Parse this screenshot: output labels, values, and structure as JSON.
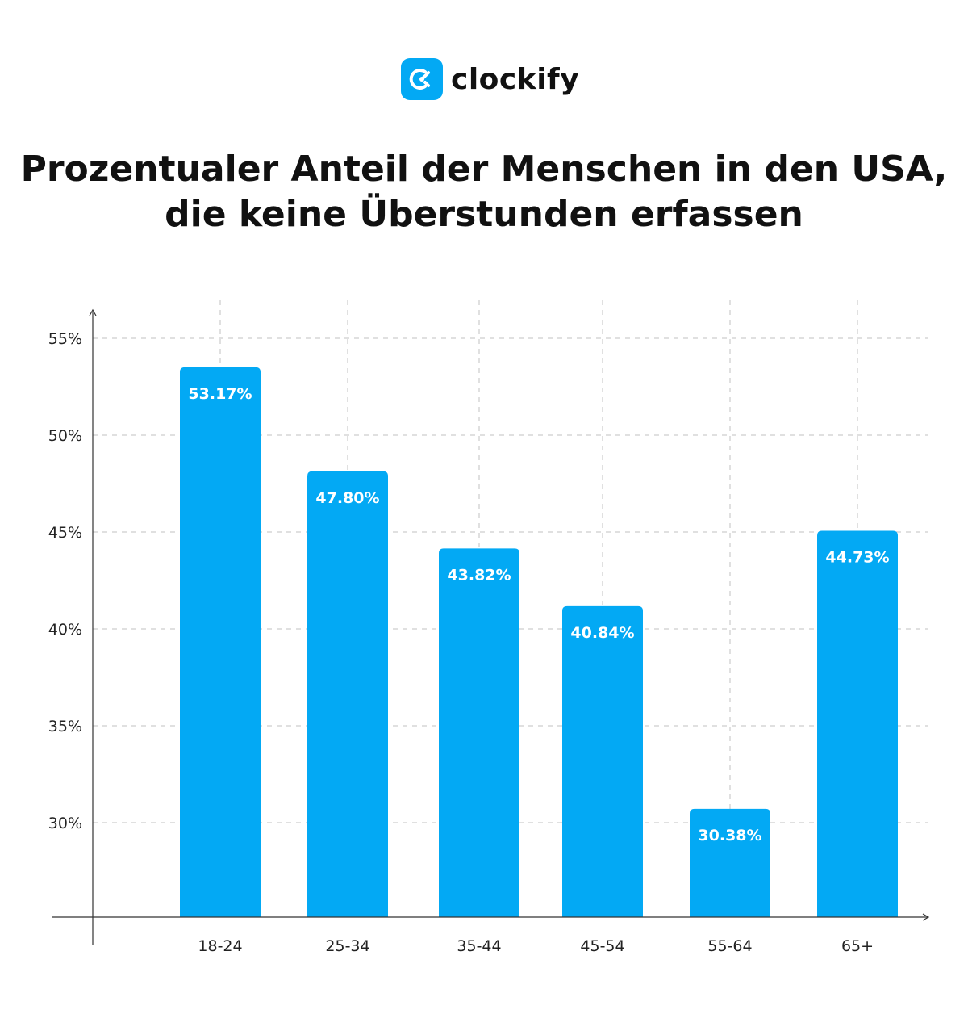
{
  "brand": {
    "name": "clockify",
    "color": "#03A9F4"
  },
  "chart_data": {
    "type": "bar",
    "title": "Prozentualer Anteil der Menschen in den USA, die keine Überstunden erfassen",
    "categories": [
      "18-24",
      "25-34",
      "35-44",
      "45-54",
      "55-64",
      "65+"
    ],
    "values": [
      53.17,
      47.8,
      43.82,
      40.84,
      30.38,
      44.73
    ],
    "data_labels": [
      "53.17%",
      "47.80%",
      "43.82%",
      "40.84%",
      "30.38%",
      "44.73%"
    ],
    "yticks": [
      30,
      35,
      40,
      45,
      50,
      55
    ],
    "ytick_labels": [
      "30%",
      "35%",
      "40%",
      "45%",
      "50%",
      "55%"
    ],
    "ylim": [
      25,
      57
    ],
    "grid": true,
    "bar_color": "#03A9F4",
    "xlabel": "",
    "ylabel": ""
  }
}
